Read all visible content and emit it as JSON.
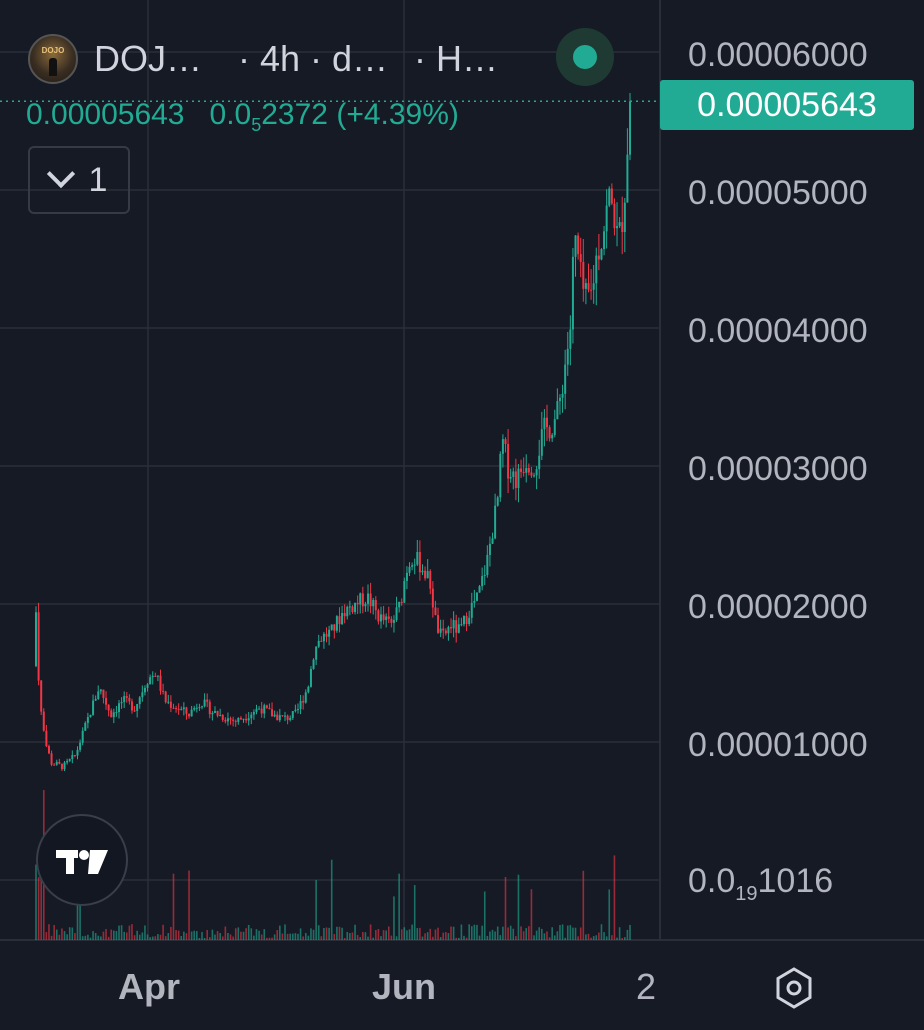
{
  "header": {
    "symbol": "DOJ…",
    "timeframe": "· 4h · d…",
    "exchange": "· H…",
    "logo_text": "DOJO"
  },
  "ohlc": {
    "last": "0.00005643",
    "change_prefix": "0.0",
    "change_zeros": "5",
    "change_digits": "2372",
    "change_pct": "(+4.39%)"
  },
  "collapse": {
    "count": "1"
  },
  "price_badge": "0.00005643",
  "y_labels": [
    "0.00006000",
    "0.00005000",
    "0.00004000",
    "0.00003000",
    "0.00002000",
    "0.00001000"
  ],
  "y_label_bottom": {
    "prefix": "0.0",
    "zeros": "19",
    "digits": "1016"
  },
  "x_labels": [
    "Apr",
    "Jun",
    "2"
  ],
  "colors": {
    "up": "#22ab94",
    "down": "#f23645",
    "bg": "#161a25",
    "grid": "#2a2e39"
  },
  "chart_data": {
    "type": "candlestick",
    "interval": "4h",
    "ylim": [
      0.0,
      6e-05
    ],
    "last_price": 5.643e-05,
    "price_path": [
      {
        "t": 0.0,
        "p": 1.55e-05
      },
      {
        "t": 0.005,
        "p": 2e-05
      },
      {
        "t": 0.01,
        "p": 1.3e-05
      },
      {
        "t": 0.02,
        "p": 1e-05
      },
      {
        "t": 0.03,
        "p": 8.5e-06
      },
      {
        "t": 0.05,
        "p": 8.2e-06
      },
      {
        "t": 0.07,
        "p": 9e-06
      },
      {
        "t": 0.09,
        "p": 1.15e-05
      },
      {
        "t": 0.11,
        "p": 1.4e-05
      },
      {
        "t": 0.13,
        "p": 1.2e-05
      },
      {
        "t": 0.15,
        "p": 1.3e-05
      },
      {
        "t": 0.17,
        "p": 1.25e-05
      },
      {
        "t": 0.19,
        "p": 1.45e-05
      },
      {
        "t": 0.205,
        "p": 1.5e-05
      },
      {
        "t": 0.22,
        "p": 1.3e-05
      },
      {
        "t": 0.24,
        "p": 1.25e-05
      },
      {
        "t": 0.26,
        "p": 1.2e-05
      },
      {
        "t": 0.28,
        "p": 1.3e-05
      },
      {
        "t": 0.3,
        "p": 1.22e-05
      },
      {
        "t": 0.32,
        "p": 1.18e-05
      },
      {
        "t": 0.34,
        "p": 1.15e-05
      },
      {
        "t": 0.36,
        "p": 1.2e-05
      },
      {
        "t": 0.38,
        "p": 1.25e-05
      },
      {
        "t": 0.4,
        "p": 1.2e-05
      },
      {
        "t": 0.42,
        "p": 1.17e-05
      },
      {
        "t": 0.44,
        "p": 1.2e-05
      },
      {
        "t": 0.46,
        "p": 1.4e-05
      },
      {
        "t": 0.47,
        "p": 1.65e-05
      },
      {
        "t": 0.48,
        "p": 1.75e-05
      },
      {
        "t": 0.5,
        "p": 1.8e-05
      },
      {
        "t": 0.52,
        "p": 1.95e-05
      },
      {
        "t": 0.54,
        "p": 2e-05
      },
      {
        "t": 0.56,
        "p": 2.05e-05
      },
      {
        "t": 0.58,
        "p": 1.9e-05
      },
      {
        "t": 0.6,
        "p": 1.85e-05
      },
      {
        "t": 0.615,
        "p": 2e-05
      },
      {
        "t": 0.625,
        "p": 2.25e-05
      },
      {
        "t": 0.635,
        "p": 2.35e-05
      },
      {
        "t": 0.65,
        "p": 2.28e-05
      },
      {
        "t": 0.665,
        "p": 2.15e-05
      },
      {
        "t": 0.675,
        "p": 1.85e-05
      },
      {
        "t": 0.685,
        "p": 1.75e-05
      },
      {
        "t": 0.7,
        "p": 1.85e-05
      },
      {
        "t": 0.715,
        "p": 1.8e-05
      },
      {
        "t": 0.73,
        "p": 1.95e-05
      },
      {
        "t": 0.745,
        "p": 2.05e-05
      },
      {
        "t": 0.76,
        "p": 2.3e-05
      },
      {
        "t": 0.77,
        "p": 2.55e-05
      },
      {
        "t": 0.78,
        "p": 2.8e-05
      },
      {
        "t": 0.785,
        "p": 3.2e-05
      },
      {
        "t": 0.795,
        "p": 3e-05
      },
      {
        "t": 0.81,
        "p": 2.9e-05
      },
      {
        "t": 0.825,
        "p": 3.05e-05
      },
      {
        "t": 0.84,
        "p": 3e-05
      },
      {
        "t": 0.855,
        "p": 3.25e-05
      },
      {
        "t": 0.87,
        "p": 3.3e-05
      },
      {
        "t": 0.88,
        "p": 3.4e-05
      },
      {
        "t": 0.89,
        "p": 3.7e-05
      },
      {
        "t": 0.9,
        "p": 4e-05
      },
      {
        "t": 0.905,
        "p": 4.5e-05
      },
      {
        "t": 0.91,
        "p": 4.65e-05
      },
      {
        "t": 0.915,
        "p": 4.4e-05
      },
      {
        "t": 0.925,
        "p": 4.2e-05
      },
      {
        "t": 0.935,
        "p": 4.25e-05
      },
      {
        "t": 0.945,
        "p": 4.55e-05
      },
      {
        "t": 0.955,
        "p": 4.7e-05
      },
      {
        "t": 0.965,
        "p": 4.95e-05
      },
      {
        "t": 0.975,
        "p": 4.8e-05
      },
      {
        "t": 0.98,
        "p": 4.6e-05
      },
      {
        "t": 0.985,
        "p": 4.75e-05
      },
      {
        "t": 0.99,
        "p": 4.9e-05
      },
      {
        "t": 0.995,
        "p": 5.3e-05
      },
      {
        "t": 1.0,
        "p": 5.643e-05
      }
    ]
  }
}
